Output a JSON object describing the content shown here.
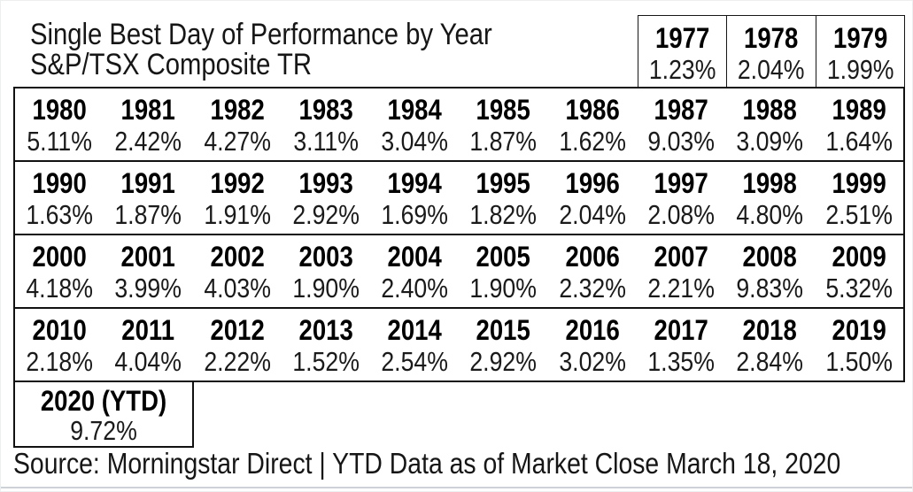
{
  "title": {
    "line1": "Single Best Day of Performance by Year",
    "line2": "S&P/TSX Composite TR"
  },
  "source": "Source: Morningstar Direct | YTD Data as of Market Close March 18, 2020",
  "colors": {
    "text": "#111111",
    "year_text": "#000000",
    "value_text": "#1a1a1a",
    "table_border": "#111111",
    "bottom_rule": "#ccd2d8",
    "background": "#ffffff"
  },
  "chart_data": {
    "type": "table",
    "title": "Single Best Day of Performance by Year",
    "subtitle": "S&P/TSX Composite TR",
    "value_format": "percent",
    "groups": [
      {
        "name": "1977-1979",
        "years": [
          "1977",
          "1978",
          "1979"
        ],
        "values": [
          "1.23%",
          "2.04%",
          "1.99%"
        ]
      },
      {
        "name": "1980-1989",
        "years": [
          "1980",
          "1981",
          "1982",
          "1983",
          "1984",
          "1985",
          "1986",
          "1987",
          "1988",
          "1989"
        ],
        "values": [
          "5.11%",
          "2.42%",
          "4.27%",
          "3.11%",
          "3.04%",
          "1.87%",
          "1.62%",
          "9.03%",
          "3.09%",
          "1.64%"
        ]
      },
      {
        "name": "1990-1999",
        "years": [
          "1990",
          "1991",
          "1992",
          "1993",
          "1994",
          "1995",
          "1996",
          "1997",
          "1998",
          "1999"
        ],
        "values": [
          "1.63%",
          "1.87%",
          "1.91%",
          "2.92%",
          "1.69%",
          "1.82%",
          "2.04%",
          "2.08%",
          "4.80%",
          "2.51%"
        ]
      },
      {
        "name": "2000-2009",
        "years": [
          "2000",
          "2001",
          "2002",
          "2003",
          "2004",
          "2005",
          "2006",
          "2007",
          "2008",
          "2009"
        ],
        "values": [
          "4.18%",
          "3.99%",
          "4.03%",
          "1.90%",
          "2.40%",
          "1.90%",
          "2.32%",
          "2.21%",
          "9.83%",
          "5.32%"
        ]
      },
      {
        "name": "2010-2019",
        "years": [
          "2010",
          "2011",
          "2012",
          "2013",
          "2014",
          "2015",
          "2016",
          "2017",
          "2018",
          "2019"
        ],
        "values": [
          "2.18%",
          "4.04%",
          "2.22%",
          "1.52%",
          "2.54%",
          "2.92%",
          "3.02%",
          "1.35%",
          "2.84%",
          "1.50%"
        ]
      },
      {
        "name": "2020",
        "years": [
          "2020 (YTD)"
        ],
        "values": [
          "9.72%"
        ]
      }
    ],
    "source": "Source: Morningstar Direct | YTD Data as of Market Close March 18, 2020"
  }
}
